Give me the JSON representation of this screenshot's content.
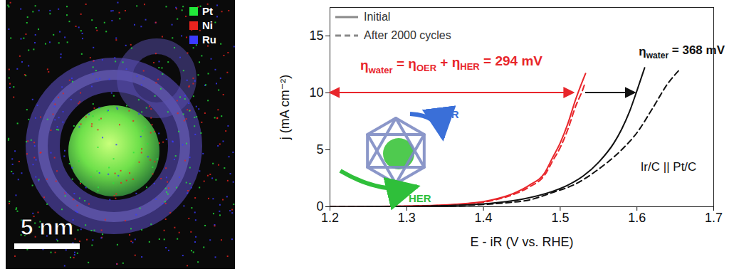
{
  "chart_data": {
    "type": "line",
    "x_label": "E - iR (V vs. RHE)",
    "y_label": "j (mA cm⁻²)",
    "xlim": [
      1.2,
      1.7
    ],
    "ylim": [
      0,
      17.5
    ],
    "xticks": [
      1.2,
      1.3,
      1.4,
      1.5,
      1.6,
      1.7
    ],
    "yticks": [
      0,
      5,
      10,
      15
    ],
    "legend": "upper left",
    "legend_entries": [
      {
        "label": "Initial",
        "line_style": "solid"
      },
      {
        "label": "After 2000 cycles",
        "line_style": "dashed"
      }
    ],
    "series": [
      {
        "color": "#e8262b",
        "line_style": "solid",
        "x": [
          1.2,
          1.25,
          1.3,
          1.35,
          1.38,
          1.4,
          1.42,
          1.44,
          1.46,
          1.48,
          1.49,
          1.5,
          1.51,
          1.52,
          1.53,
          1.533
        ],
        "values": [
          0,
          0.02,
          0.06,
          0.15,
          0.3,
          0.45,
          0.75,
          1.2,
          1.9,
          3.0,
          4.3,
          5.6,
          7.3,
          9.4,
          11.2,
          11.7
        ]
      },
      {
        "color": "#e8262b",
        "line_style": "dashed",
        "x": [
          1.2,
          1.25,
          1.3,
          1.35,
          1.38,
          1.4,
          1.42,
          1.44,
          1.46,
          1.48,
          1.49,
          1.5,
          1.51,
          1.52,
          1.53,
          1.532
        ],
        "values": [
          0,
          0.02,
          0.05,
          0.13,
          0.27,
          0.4,
          0.68,
          1.1,
          1.75,
          2.8,
          4.0,
          5.2,
          6.8,
          8.8,
          10.4,
          10.8
        ]
      },
      {
        "color": "#111111",
        "line_style": "solid",
        "x": [
          1.2,
          1.3,
          1.35,
          1.4,
          1.43,
          1.46,
          1.49,
          1.51,
          1.53,
          1.55,
          1.57,
          1.58,
          1.59,
          1.6,
          1.61
        ],
        "values": [
          0,
          0.03,
          0.1,
          0.25,
          0.45,
          0.8,
          1.35,
          1.9,
          2.7,
          3.9,
          5.6,
          6.8,
          8.3,
          10.2,
          12.2
        ]
      },
      {
        "color": "#111111",
        "line_style": "dashed",
        "x": [
          1.2,
          1.3,
          1.35,
          1.4,
          1.43,
          1.46,
          1.49,
          1.52,
          1.55,
          1.58,
          1.6,
          1.62,
          1.64,
          1.655
        ],
        "values": [
          0,
          0.03,
          0.08,
          0.2,
          0.35,
          0.6,
          1.25,
          2.0,
          3.3,
          5.0,
          6.5,
          8.6,
          10.8,
          12.0
        ]
      }
    ],
    "annotations": [
      {
        "parts": [
          "η",
          "water",
          " = η",
          "OER",
          " + η",
          "HER",
          " = 294 mV"
        ],
        "color": "#e8262b"
      },
      {
        "parts": [
          "η",
          "water",
          " = 368 mV"
        ],
        "color": "#111111"
      },
      {
        "parts": [
          "Ir/C || Pt/C"
        ],
        "color": "#111111"
      }
    ],
    "arrows": [
      {
        "from": 1.2,
        "to": 1.518,
        "y": 10,
        "color": "#e8262b"
      },
      {
        "from": 1.533,
        "to": 1.598,
        "y": 10,
        "color": "#111111"
      }
    ],
    "inset": {
      "labels": [
        "OER",
        "HER"
      ],
      "colors": [
        "#3a6fd8",
        "#2fbf3a"
      ]
    }
  },
  "image": {
    "labels": [
      "Pt",
      "Ni",
      "Ru"
    ],
    "colors": [
      "#22e83a",
      "#e8231e",
      "#3a3aff"
    ],
    "scale_bar": "5 nm"
  }
}
